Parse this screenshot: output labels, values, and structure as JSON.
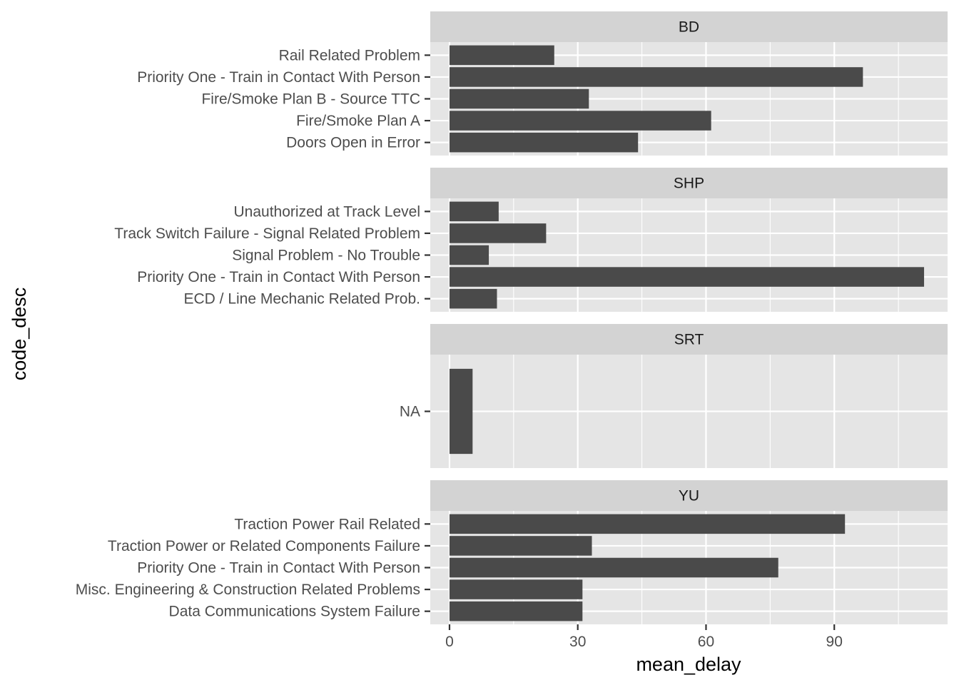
{
  "chart_data": {
    "type": "bar",
    "orientation": "horizontal",
    "xlabel": "mean_delay",
    "ylabel": "code_desc",
    "xlim": [
      -4.5,
      116.5
    ],
    "x_ticks": [
      0,
      30,
      60,
      90
    ],
    "x_tick_labels": [
      "0",
      "30",
      "60",
      "90"
    ],
    "facet_panels": [
      {
        "facet": "BD",
        "categories": [
          "Rail Related Problem",
          "Priority One - Train in Contact With Person",
          "Fire/Smoke Plan B - Source TTC",
          "Fire/Smoke Plan A",
          "Doors Open in Error"
        ],
        "values": [
          24.5,
          96.7,
          32.6,
          61.2,
          44.1
        ]
      },
      {
        "facet": "SHP",
        "categories": [
          "Unauthorized at Track Level",
          "Track Switch Failure - Signal Related Problem",
          "Signal Problem - No Trouble",
          "Priority One - Train in Contact With Person",
          "ECD / Line Mechanic Related Prob."
        ],
        "values": [
          11.5,
          22.6,
          9.2,
          111.0,
          11.1
        ]
      },
      {
        "facet": "SRT",
        "categories": [
          "NA"
        ],
        "values": [
          5.4
        ]
      },
      {
        "facet": "YU",
        "categories": [
          "Traction Power Rail Related",
          "Traction Power or Related Components Failure",
          "Priority One - Train in Contact With Person",
          "Misc. Engineering & Construction Related Problems",
          "Data Communications System Failure"
        ],
        "values": [
          92.5,
          33.3,
          76.9,
          31.1,
          31.1
        ]
      }
    ],
    "grid": true,
    "legend": "none",
    "colors": {
      "bar": "#4a4a4a",
      "panel_background": "#e5e5e5",
      "strip_background": "#d3d3d3",
      "grid": "#ffffff"
    }
  }
}
